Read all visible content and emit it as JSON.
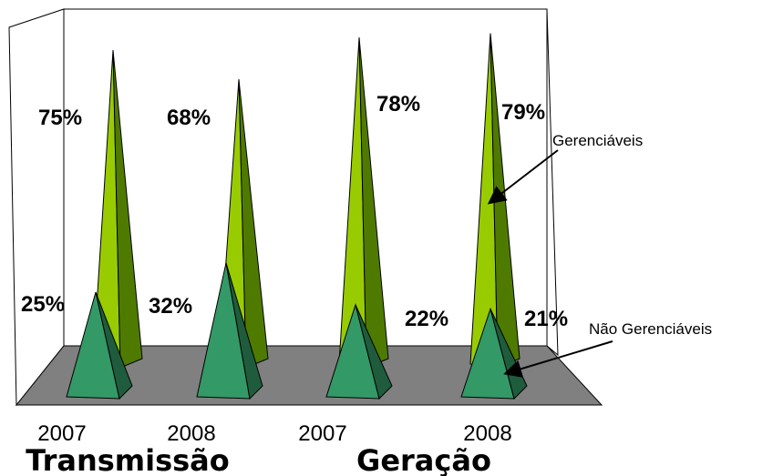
{
  "chart_data": {
    "type": "bar",
    "style": "3d-pyramid",
    "title": "",
    "categories": [
      "2007",
      "2008",
      "2007",
      "2008"
    ],
    "groups": [
      "Transmissão",
      "Geração"
    ],
    "series": [
      {
        "name": "Gerenciáveis",
        "values": [
          75,
          68,
          78,
          79
        ]
      },
      {
        "name": "Não Gerenciáveis",
        "values": [
          25,
          32,
          22,
          21
        ]
      }
    ],
    "value_labels": {
      "front": [
        "25%",
        "32%",
        "22%",
        "21%"
      ],
      "back": [
        "75%",
        "68%",
        "78%",
        "79%"
      ]
    },
    "annotations": [
      "Gerenciáveis",
      "Não Gerenciáveis"
    ],
    "ylim": [
      0,
      100
    ],
    "grid": false
  },
  "colors": {
    "back_light": "#99cc00",
    "back_dark": "#4f7a00",
    "front_light": "#339966",
    "front_dark": "#1f5c3d",
    "floor": "#808080"
  }
}
